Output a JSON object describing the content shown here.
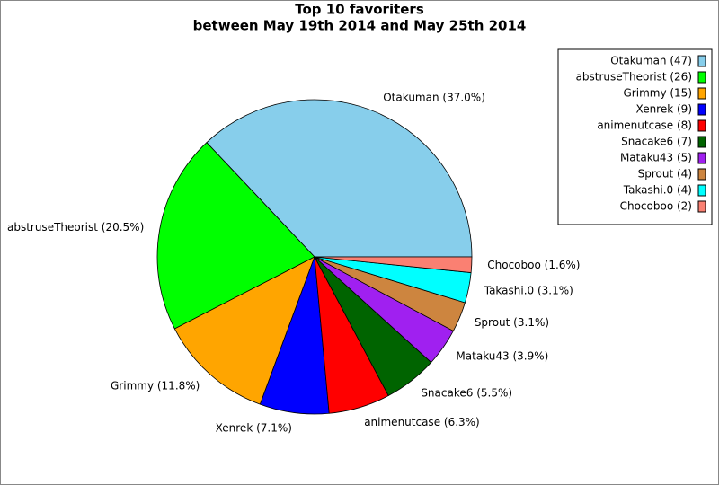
{
  "chart_data": {
    "type": "pie",
    "title": "Top 10 favoriters",
    "subtitle": "between May 19th 2014 and May 25th 2014",
    "categories": [
      "Otakuman (47)",
      "abstruseTheorist (26)",
      "Grimmy (15)",
      "Xenrek (9)",
      "animenutcase (8)",
      "Snacake6 (7)",
      "Mataku43 (5)",
      "Sprout (4)",
      "Takashi.0 (4)",
      "Chocoboo (2)"
    ],
    "values": [
      37.0,
      20.5,
      11.8,
      7.1,
      6.3,
      5.5,
      3.9,
      3.1,
      3.1,
      1.6
    ],
    "value_labels": [
      "Otakuman (37.0%)",
      "abstruseTheorist (20.5%)",
      "Grimmy (11.8%)",
      "Xenrek (7.1%)",
      "animenutcase (6.3%)",
      "Snacake6 (5.5%)",
      "Mataku43 (3.9%)",
      "Sprout (3.1%)",
      "Takashi.0 (3.1%)",
      "Chocoboo (1.6%)"
    ],
    "colors": [
      "#87ceeb",
      "#00ff00",
      "#ffa500",
      "#0000ff",
      "#ff0000",
      "#006400",
      "#a020f0",
      "#cd853f",
      "#00ffff",
      "#fa8072"
    ],
    "legend": "upper right"
  }
}
